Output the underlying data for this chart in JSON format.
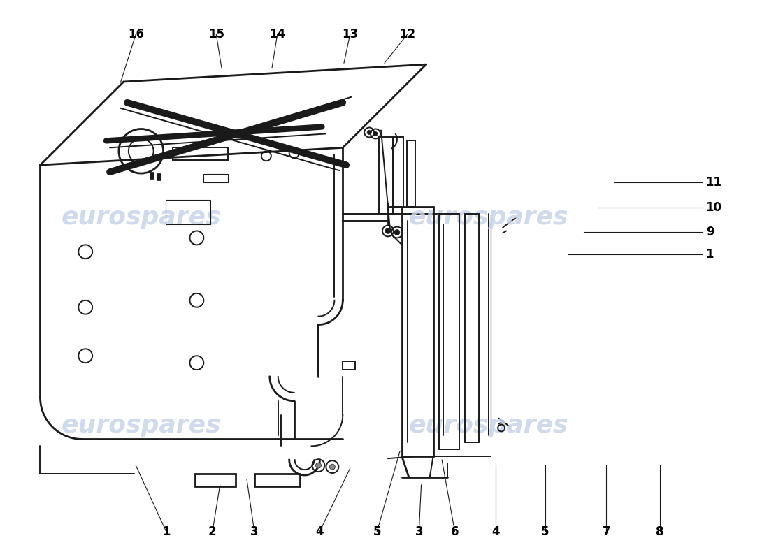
{
  "background_color": "#ffffff",
  "watermark_text": "eurospares",
  "watermark_color": "#c8d4e8",
  "line_color": "#1a1a1a",
  "label_color": "#000000",
  "font_size_labels": 12,
  "font_size_watermark": 26,
  "top_labels": [
    {
      "num": "1",
      "xt": 0.215,
      "yt": 0.955,
      "xe": 0.175,
      "ye": 0.835
    },
    {
      "num": "2",
      "xt": 0.275,
      "yt": 0.955,
      "xe": 0.285,
      "ye": 0.87
    },
    {
      "num": "3",
      "xt": 0.33,
      "yt": 0.955,
      "xe": 0.32,
      "ye": 0.86
    },
    {
      "num": "4",
      "xt": 0.415,
      "yt": 0.955,
      "xe": 0.455,
      "ye": 0.84
    },
    {
      "num": "5",
      "xt": 0.49,
      "yt": 0.955,
      "xe": 0.52,
      "ye": 0.81
    },
    {
      "num": "3",
      "xt": 0.545,
      "yt": 0.955,
      "xe": 0.548,
      "ye": 0.87
    },
    {
      "num": "6",
      "xt": 0.592,
      "yt": 0.955,
      "xe": 0.575,
      "ye": 0.825
    },
    {
      "num": "4",
      "xt": 0.645,
      "yt": 0.955,
      "xe": 0.645,
      "ye": 0.835
    },
    {
      "num": "5",
      "xt": 0.71,
      "yt": 0.955,
      "xe": 0.71,
      "ye": 0.835
    },
    {
      "num": "7",
      "xt": 0.79,
      "yt": 0.955,
      "xe": 0.79,
      "ye": 0.835
    },
    {
      "num": "8",
      "xt": 0.86,
      "yt": 0.955,
      "xe": 0.86,
      "ye": 0.835
    }
  ],
  "right_labels": [
    {
      "num": "1",
      "xt": 0.92,
      "yt": 0.455,
      "xe": 0.74,
      "ye": 0.455
    },
    {
      "num": "9",
      "xt": 0.92,
      "yt": 0.415,
      "xe": 0.76,
      "ye": 0.415
    },
    {
      "num": "10",
      "xt": 0.92,
      "yt": 0.37,
      "xe": 0.78,
      "ye": 0.37
    },
    {
      "num": "11",
      "xt": 0.92,
      "yt": 0.325,
      "xe": 0.8,
      "ye": 0.325
    }
  ],
  "bottom_labels": [
    {
      "num": "16",
      "xt": 0.175,
      "yt": 0.058,
      "xe": 0.155,
      "ye": 0.145
    },
    {
      "num": "15",
      "xt": 0.28,
      "yt": 0.058,
      "xe": 0.287,
      "ye": 0.118
    },
    {
      "num": "14",
      "xt": 0.36,
      "yt": 0.058,
      "xe": 0.353,
      "ye": 0.118
    },
    {
      "num": "13",
      "xt": 0.455,
      "yt": 0.058,
      "xe": 0.447,
      "ye": 0.11
    },
    {
      "num": "12",
      "xt": 0.53,
      "yt": 0.058,
      "xe": 0.5,
      "ye": 0.11
    }
  ]
}
